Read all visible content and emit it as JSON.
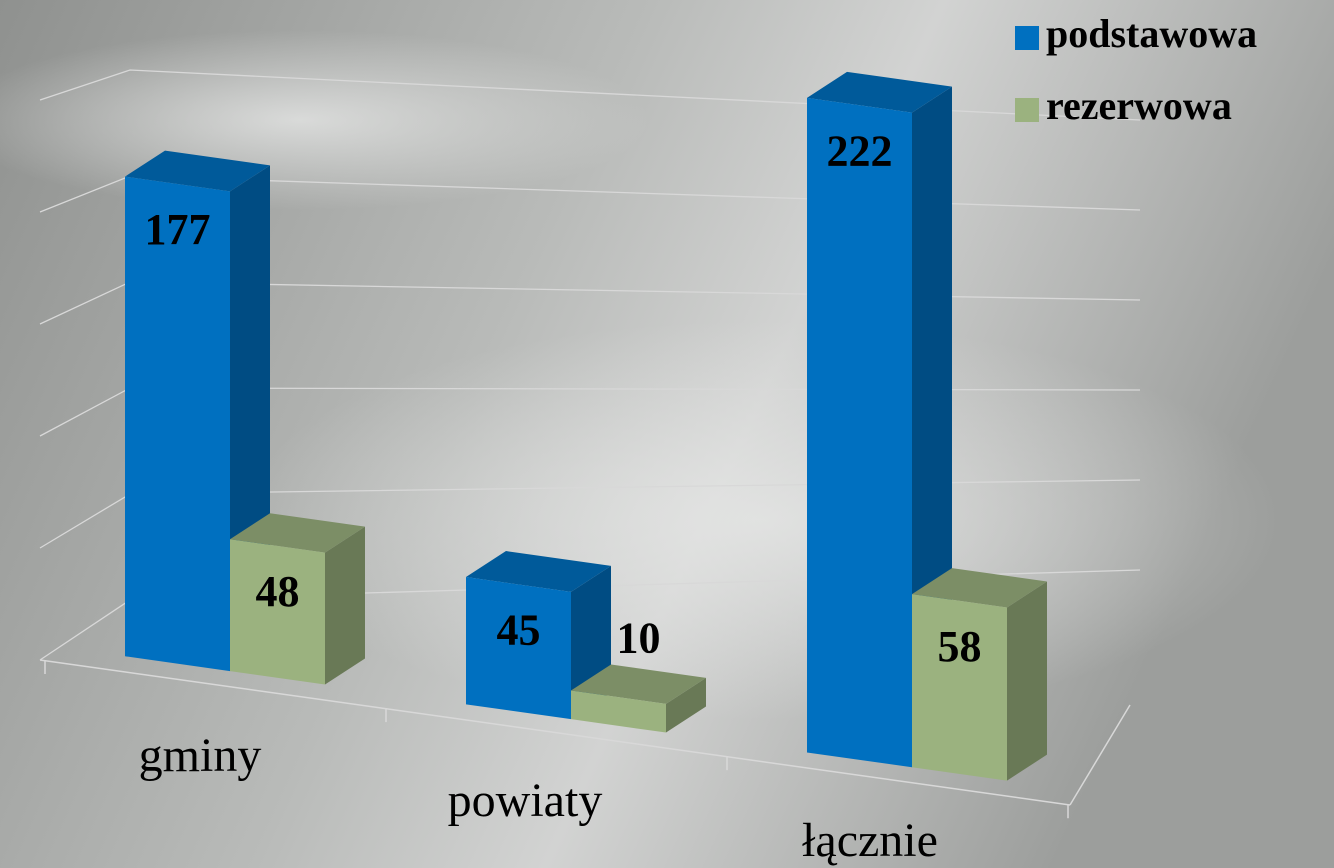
{
  "chart_data": {
    "type": "bar3d",
    "categories": [
      "gminy",
      "powiaty",
      "łącznie"
    ],
    "series": [
      {
        "name": "podstawowa",
        "color": "#0070c0",
        "values": [
          177,
          45,
          222
        ]
      },
      {
        "name": "rezerwowa",
        "color": "#9bb27f",
        "values": [
          48,
          10,
          58
        ]
      }
    ],
    "ylim": [
      0,
      250
    ],
    "yticks": [
      0,
      50,
      100,
      150,
      200,
      250
    ],
    "grid": true,
    "legend": "top-right"
  }
}
